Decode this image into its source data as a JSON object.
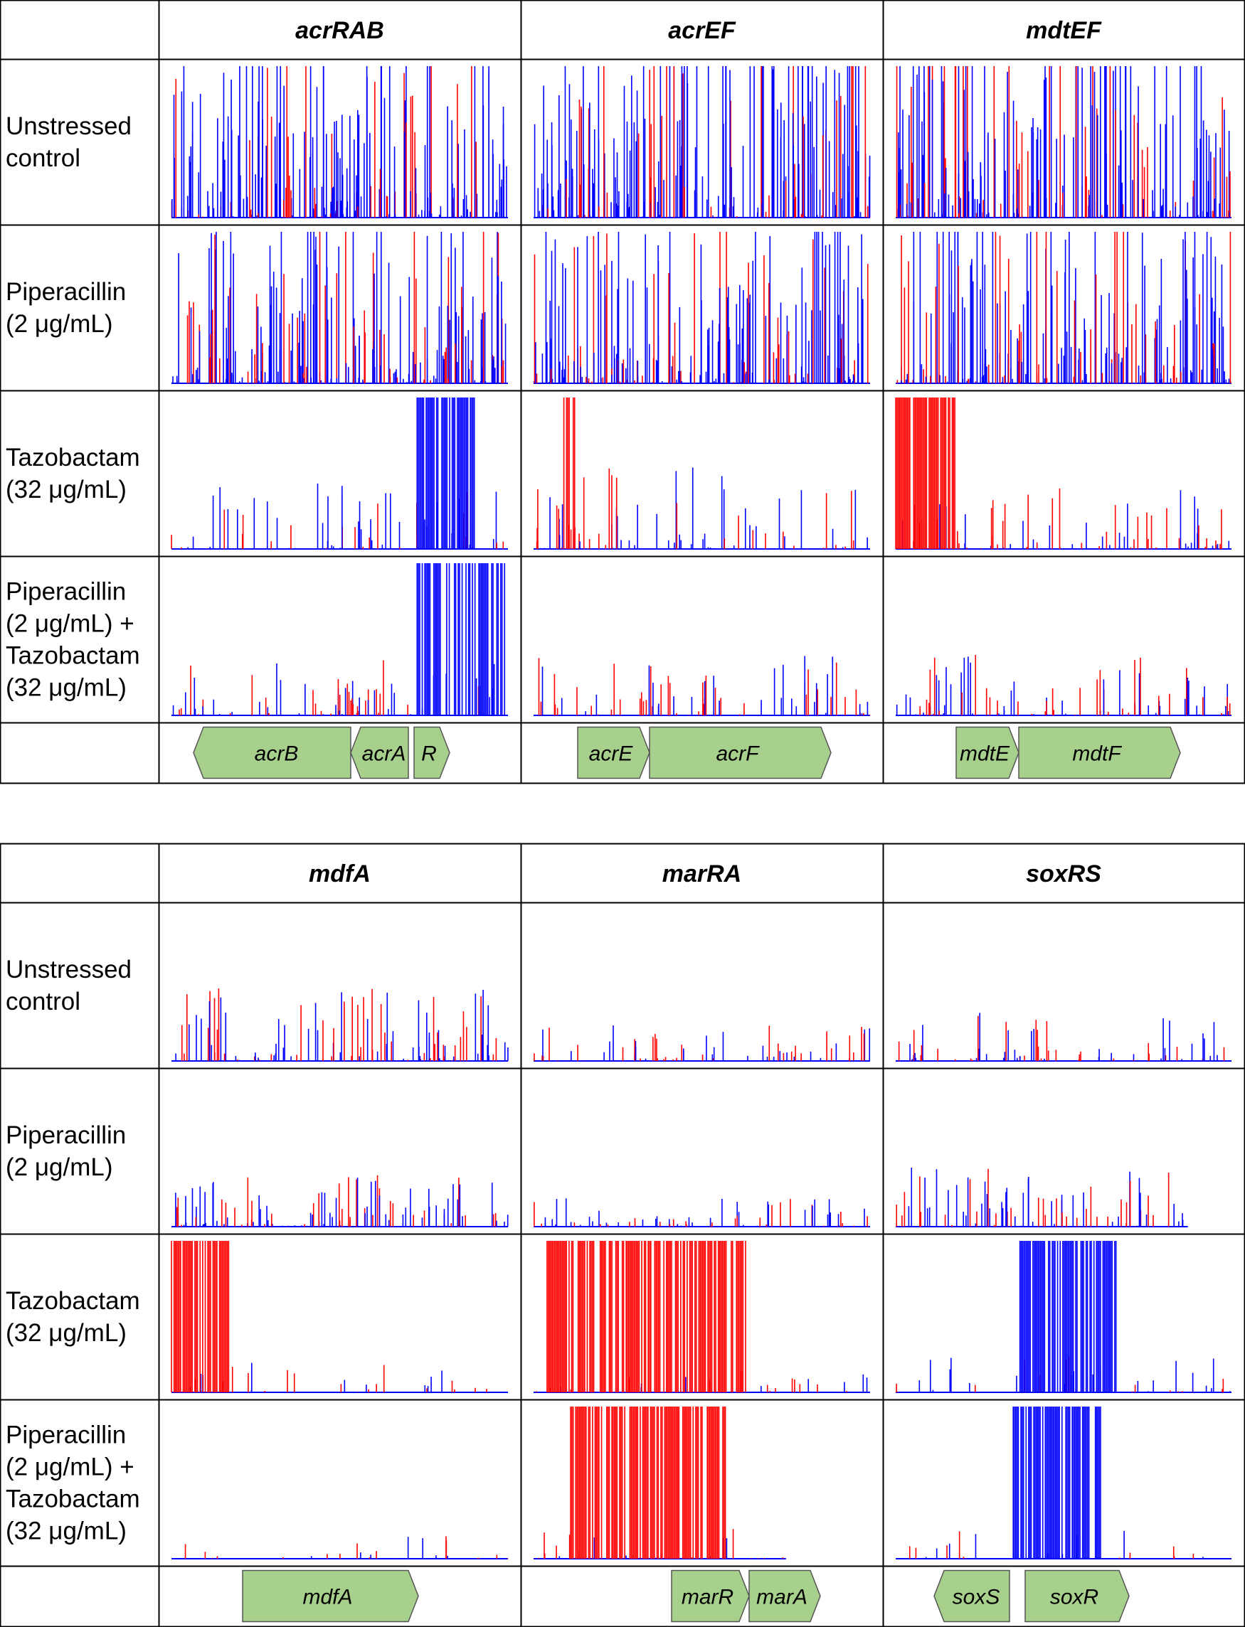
{
  "colors": {
    "forward": "#0000ff",
    "reverse": "#ff0000",
    "gene_fill": "#a8d08d",
    "gene_stroke": "#555555",
    "grid": "#000000"
  },
  "panels": [
    {
      "columns": [
        "acrRAB",
        "acrEF",
        "mdtEF"
      ],
      "rows": [
        [
          "Unstressed",
          "control"
        ],
        [
          "Piperacillin",
          "(2 μg/mL)"
        ],
        [
          "Tazobactam",
          "(32 μg/mL)"
        ],
        [
          "Piperacillin",
          "(2 μg/mL) +",
          "Tazobactam",
          "(32 μg/mL)"
        ]
      ],
      "profiles": [
        [
          {
            "seed": 11,
            "bars": 240,
            "scale": 0.35,
            "tail": 2.2,
            "dense": [],
            "fR": 0.25,
            "end": 1.0
          },
          {
            "seed": 12,
            "bars": 240,
            "scale": 0.38,
            "tail": 2.2,
            "dense": [],
            "fR": 0.25,
            "end": 1.0
          },
          {
            "seed": 13,
            "bars": 240,
            "scale": 0.42,
            "tail": 2.2,
            "dense": [],
            "fR": 0.3,
            "end": 1.0
          }
        ],
        [
          {
            "seed": 21,
            "bars": 240,
            "scale": 0.3,
            "tail": 2.6,
            "dense": [],
            "fR": 0.28,
            "end": 1.0
          },
          {
            "seed": 22,
            "bars": 240,
            "scale": 0.3,
            "tail": 2.6,
            "dense": [],
            "fR": 0.28,
            "end": 1.0
          },
          {
            "seed": 23,
            "bars": 240,
            "scale": 0.32,
            "tail": 2.6,
            "dense": [],
            "fR": 0.28,
            "end": 1.0
          }
        ],
        [
          {
            "seed": 31,
            "bars": 90,
            "scale": 0.12,
            "tail": 3.2,
            "dense": [
              {
                "from": 0.73,
                "to": 0.9,
                "color": "blue"
              }
            ],
            "fR": 0.4,
            "end": 1.0
          },
          {
            "seed": 32,
            "bars": 110,
            "scale": 0.14,
            "tail": 3.0,
            "dense": [
              {
                "from": 0.09,
                "to": 0.13,
                "color": "red"
              }
            ],
            "fR": 0.5,
            "end": 1.0
          },
          {
            "seed": 33,
            "bars": 90,
            "scale": 0.1,
            "tail": 3.0,
            "dense": [
              {
                "from": 0.0,
                "to": 0.18,
                "color": "red"
              }
            ],
            "fR": 0.6,
            "end": 1.0
          }
        ],
        [
          {
            "seed": 41,
            "bars": 90,
            "scale": 0.1,
            "tail": 3.3,
            "dense": [
              {
                "from": 0.73,
                "to": 0.99,
                "color": "blue"
              }
            ],
            "fR": 0.4,
            "end": 1.0
          },
          {
            "seed": 42,
            "bars": 100,
            "scale": 0.1,
            "tail": 3.2,
            "dense": [],
            "fR": 0.55,
            "end": 1.0
          },
          {
            "seed": 43,
            "bars": 110,
            "scale": 0.1,
            "tail": 3.0,
            "dense": [],
            "fR": 0.5,
            "end": 1.0
          }
        ]
      ],
      "genes": [
        [
          {
            "name": "acrB",
            "dir": "left"
          },
          {
            "name": "acrA",
            "dir": "left"
          },
          {
            "name": "R",
            "dir": "right"
          }
        ],
        [
          {
            "name": "acrE",
            "dir": "right"
          },
          {
            "name": "acrF",
            "dir": "right"
          }
        ],
        [
          {
            "name": "mdtE",
            "dir": "right"
          },
          {
            "name": "mdtF",
            "dir": "right"
          }
        ]
      ]
    },
    {
      "columns": [
        "mdfA",
        "marRA",
        "soxRS"
      ],
      "rows": [
        [
          "Unstressed",
          "control"
        ],
        [
          "Piperacillin",
          "(2 μg/mL)"
        ],
        [
          "Tazobactam",
          "(32 μg/mL)"
        ],
        [
          "Piperacillin",
          "(2 μg/mL) +",
          "Tazobactam",
          "(32 μg/mL)"
        ]
      ],
      "profiles": [
        [
          {
            "seed": 51,
            "bars": 120,
            "scale": 0.12,
            "tail": 2.6,
            "dense": [],
            "fR": 0.45,
            "end": 1.0
          },
          {
            "seed": 52,
            "bars": 90,
            "scale": 0.06,
            "tail": 3.0,
            "dense": [],
            "fR": 0.5,
            "end": 1.0
          },
          {
            "seed": 53,
            "bars": 90,
            "scale": 0.08,
            "tail": 2.8,
            "dense": [],
            "fR": 0.5,
            "end": 1.0
          }
        ],
        [
          {
            "seed": 61,
            "bars": 120,
            "scale": 0.09,
            "tail": 2.8,
            "dense": [],
            "fR": 0.4,
            "end": 1.0
          },
          {
            "seed": 62,
            "bars": 90,
            "scale": 0.05,
            "tail": 3.0,
            "dense": [],
            "fR": 0.45,
            "end": 1.0
          },
          {
            "seed": 63,
            "bars": 100,
            "scale": 0.1,
            "tail": 2.6,
            "dense": [],
            "fR": 0.4,
            "end": 0.87
          }
        ],
        [
          {
            "seed": 71,
            "bars": 40,
            "scale": 0.05,
            "tail": 3.2,
            "dense": [
              {
                "from": 0.0,
                "to": 0.17,
                "color": "red"
              }
            ],
            "fR": 0.6,
            "end": 1.0
          },
          {
            "seed": 72,
            "bars": 40,
            "scale": 0.05,
            "tail": 3.2,
            "dense": [
              {
                "from": 0.04,
                "to": 0.63,
                "color": "red"
              }
            ],
            "fR": 0.7,
            "end": 1.0
          },
          {
            "seed": 73,
            "bars": 50,
            "scale": 0.06,
            "tail": 3.2,
            "dense": [
              {
                "from": 0.37,
                "to": 0.66,
                "color": "blue"
              }
            ],
            "fR": 0.4,
            "end": 1.0
          }
        ],
        [
          {
            "seed": 81,
            "bars": 35,
            "scale": 0.04,
            "tail": 3.4,
            "dense": [],
            "fR": 0.55,
            "end": 1.0
          },
          {
            "seed": 82,
            "bars": 30,
            "scale": 0.05,
            "tail": 3.2,
            "dense": [
              {
                "from": 0.11,
                "to": 0.57,
                "color": "red"
              }
            ],
            "fR": 0.7,
            "end": 0.75
          },
          {
            "seed": 83,
            "bars": 30,
            "scale": 0.05,
            "tail": 3.2,
            "dense": [
              {
                "from": 0.35,
                "to": 0.61,
                "color": "blue"
              }
            ],
            "fR": 0.45,
            "end": 1.0
          }
        ]
      ],
      "genes": [
        [
          {
            "name": "mdfA",
            "dir": "right"
          }
        ],
        [
          {
            "name": "marR",
            "dir": "right"
          },
          {
            "name": "marA",
            "dir": "right"
          }
        ],
        [
          {
            "name": "soxS",
            "dir": "left"
          },
          {
            "name": "soxR",
            "dir": "right"
          }
        ]
      ]
    }
  ]
}
